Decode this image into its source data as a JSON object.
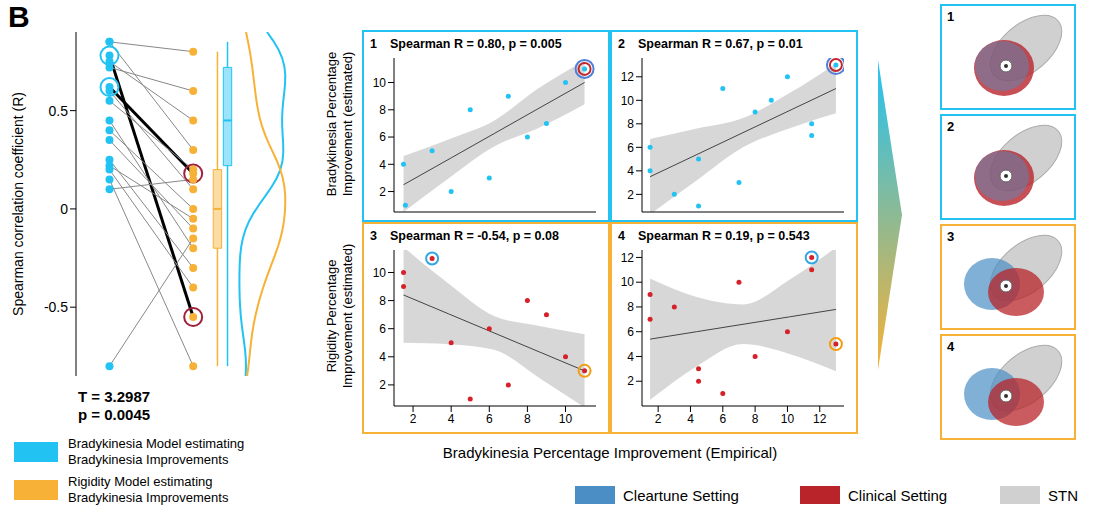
{
  "panel_label": "B",
  "chart_data": [
    {
      "type": "paired_scatter",
      "ylabel": "Spearman correlation coefficient (R)",
      "ylim": [
        -0.85,
        0.9
      ],
      "yticks": [
        -0.5,
        0,
        0.5
      ],
      "tick_labels": "y",
      "series": [
        {
          "name": "Bradykinesia Model estimating Bradykinesia Improvements",
          "color": "#22c3f3",
          "values": [
            0.85,
            0.85,
            0.78,
            0.75,
            0.72,
            0.62,
            0.6,
            0.55,
            0.45,
            0.4,
            0.35,
            0.25,
            0.22,
            0.2,
            0.15,
            0.1,
            -0.8
          ]
        },
        {
          "name": "Rigidity Model estimating Bradykinesia Improvements",
          "color": "#f7b136",
          "values": [
            0.8,
            0.3,
            -0.55,
            0.45,
            0.6,
            0.18,
            0.1,
            0.2,
            -0.2,
            0.0,
            -0.1,
            -0.3,
            -0.05,
            -0.4,
            -0.8,
            0.15,
            -0.15
          ]
        }
      ],
      "highlight": [
        2,
        5
      ],
      "annotations": [
        "T = 3.2987",
        "p = 0.0045"
      ]
    },
    {
      "type": "scatter",
      "panel": "1",
      "title": "Spearman R = 0.80, p = 0.005",
      "color": "#22c3f3",
      "x": [
        1.5,
        1.6,
        3,
        4,
        5,
        6,
        7,
        8,
        9,
        10,
        11
      ],
      "y": [
        4,
        1,
        5,
        2,
        8,
        3,
        9,
        6,
        7,
        10,
        11
      ],
      "xlim": [
        1,
        11.6
      ],
      "xticks": [
        2,
        4,
        6,
        8,
        10
      ],
      "ylim": [
        0.5,
        11.8
      ],
      "yticks": [
        2,
        4,
        6,
        8,
        10
      ],
      "tick_labels": "y",
      "fit": {
        "x": [
          1.5,
          4,
          6.25,
          8.5,
          11
        ],
        "y": [
          2.5,
          4.47,
          6.25,
          8.03,
          10
        ],
        "lower": [
          0.5,
          3.1,
          5.3,
          6.6,
          8.4
        ],
        "upper": [
          4.6,
          5.9,
          7.2,
          9.5,
          11.6
        ]
      },
      "circled": [
        {
          "index": 10,
          "colors": [
            "#c0282d",
            "#4f7fd6"
          ]
        }
      ]
    },
    {
      "type": "scatter",
      "panel": "2",
      "title": "Spearman R = 0.67, p = 0.01",
      "color": "#22c3f3",
      "x": [
        1.5,
        1.5,
        3,
        4.5,
        4.5,
        6,
        7,
        8,
        9,
        10,
        11.5,
        11.5,
        13
      ],
      "y": [
        6,
        4,
        2,
        5,
        1,
        11,
        3,
        9,
        10,
        12,
        8,
        7,
        13
      ],
      "xlim": [
        1,
        13.5
      ],
      "xticks": [
        2,
        4,
        6,
        8,
        10,
        12
      ],
      "ylim": [
        0.5,
        13.6
      ],
      "yticks": [
        2,
        4,
        6,
        8,
        10,
        12
      ],
      "tick_labels": "y",
      "fit": {
        "x": [
          1.5,
          4.4,
          7.25,
          10.1,
          13
        ],
        "y": [
          3.5,
          5.39,
          7.25,
          9.11,
          11
        ],
        "lower": [
          0.3,
          3.2,
          6.0,
          7.6,
          8.9
        ],
        "upper": [
          6.7,
          7.6,
          8.5,
          10.6,
          13.1
        ]
      },
      "circled": [
        {
          "index": 12,
          "colors": [
            "#c0282d",
            "#4f7fd6"
          ]
        }
      ]
    },
    {
      "type": "scatter",
      "panel": "3",
      "title": "Spearman R = -0.54, p = 0.08",
      "color": "#d6202a",
      "x": [
        1.5,
        1.5,
        3,
        4,
        5,
        6,
        7,
        8,
        9,
        10,
        11
      ],
      "y": [
        10,
        9,
        11,
        5,
        1,
        6,
        2,
        8,
        7,
        4,
        3
      ],
      "xlim": [
        1,
        11.6
      ],
      "xticks": [
        2,
        4,
        6,
        8,
        10
      ],
      "ylim": [
        0.5,
        11.6
      ],
      "yticks": [
        2,
        4,
        6,
        8,
        10
      ],
      "tick_labels": true,
      "fit": {
        "x": [
          1.5,
          3.875,
          6.25,
          8.625,
          11
        ],
        "y": [
          8.4,
          7.05,
          5.7,
          4.35,
          3.0
        ],
        "lower": [
          5.0,
          4.9,
          4.5,
          2.5,
          0.4
        ],
        "upper": [
          11.8,
          9.2,
          6.9,
          6.2,
          5.6
        ]
      },
      "circled": [
        {
          "index": 2,
          "colors": [
            "#2fa7e6"
          ]
        },
        {
          "index": 10,
          "colors": [
            "#f39c12"
          ]
        }
      ]
    },
    {
      "type": "scatter",
      "panel": "4",
      "title": "Spearman R = 0.19, p = 0.543",
      "color": "#d6202a",
      "x": [
        1.5,
        1.5,
        3,
        4.5,
        4.5,
        6,
        7,
        8,
        10,
        11.5,
        11.5,
        13
      ],
      "y": [
        9,
        7,
        8,
        3,
        2,
        1,
        10,
        4,
        6,
        12,
        11,
        5
      ],
      "xlim": [
        1,
        13.5
      ],
      "xticks": [
        2,
        4,
        6,
        8,
        10,
        12
      ],
      "ylim": [
        0,
        12.6
      ],
      "yticks": [
        2,
        4,
        6,
        8,
        10,
        12
      ],
      "tick_labels": true,
      "fit": {
        "x": [
          1.5,
          4.375,
          7.25,
          10.125,
          13
        ],
        "y": [
          5.4,
          6.0,
          6.6,
          7.2,
          7.8
        ],
        "lower": [
          0.5,
          3.2,
          5.0,
          4.2,
          2.8
        ],
        "upper": [
          10.3,
          8.8,
          8.2,
          10.2,
          12.8
        ]
      },
      "circled": [
        {
          "index": 9,
          "colors": [
            "#2fa7e6"
          ]
        },
        {
          "index": 11,
          "colors": [
            "#f39c12"
          ]
        }
      ]
    }
  ],
  "row_labels": [
    "Bradykinesia Percentage Improvement (estimated)",
    "Rigidity Percentage Improvement (estimated)"
  ],
  "xlabel": "Bradykinesia Percentage Improvement (Empirical)",
  "key": [
    {
      "label": "Cleartune Setting",
      "color": "#4b8ec6"
    },
    {
      "label": "Clinical Setting",
      "color": "#b8242a"
    },
    {
      "label": "STN",
      "color": "#d0d0d0"
    }
  ]
}
